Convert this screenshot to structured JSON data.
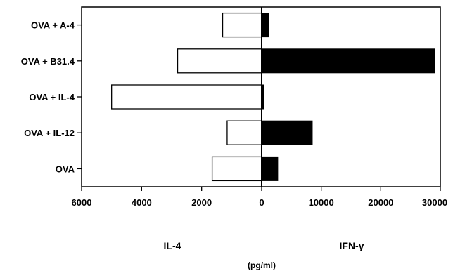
{
  "chart_data": {
    "type": "bar",
    "orientation": "horizontal-diverging",
    "categories": [
      "OVA + A-4",
      "OVA + B31.4",
      "OVA + IL-4",
      "OVA + IL-12",
      "OVA"
    ],
    "series": [
      {
        "name": "IL-4",
        "side": "left",
        "fill": "#ffffff",
        "unit_max": 6000,
        "values": [
          1300,
          2800,
          5000,
          1150,
          1650
        ]
      },
      {
        "name": "IFN-γ",
        "side": "right",
        "fill": "#000000",
        "unit_max": 30000,
        "values": [
          1200,
          29000,
          300,
          8500,
          2700
        ]
      }
    ],
    "xticks_left": [
      "6000",
      "4000",
      "2000",
      "0"
    ],
    "xticks_right": [
      "10000",
      "20000",
      "30000"
    ],
    "label_left": "IL-4",
    "label_right": "IFN-γ",
    "unit_label": "(pg/ml)",
    "grid": false,
    "legend": "none"
  }
}
